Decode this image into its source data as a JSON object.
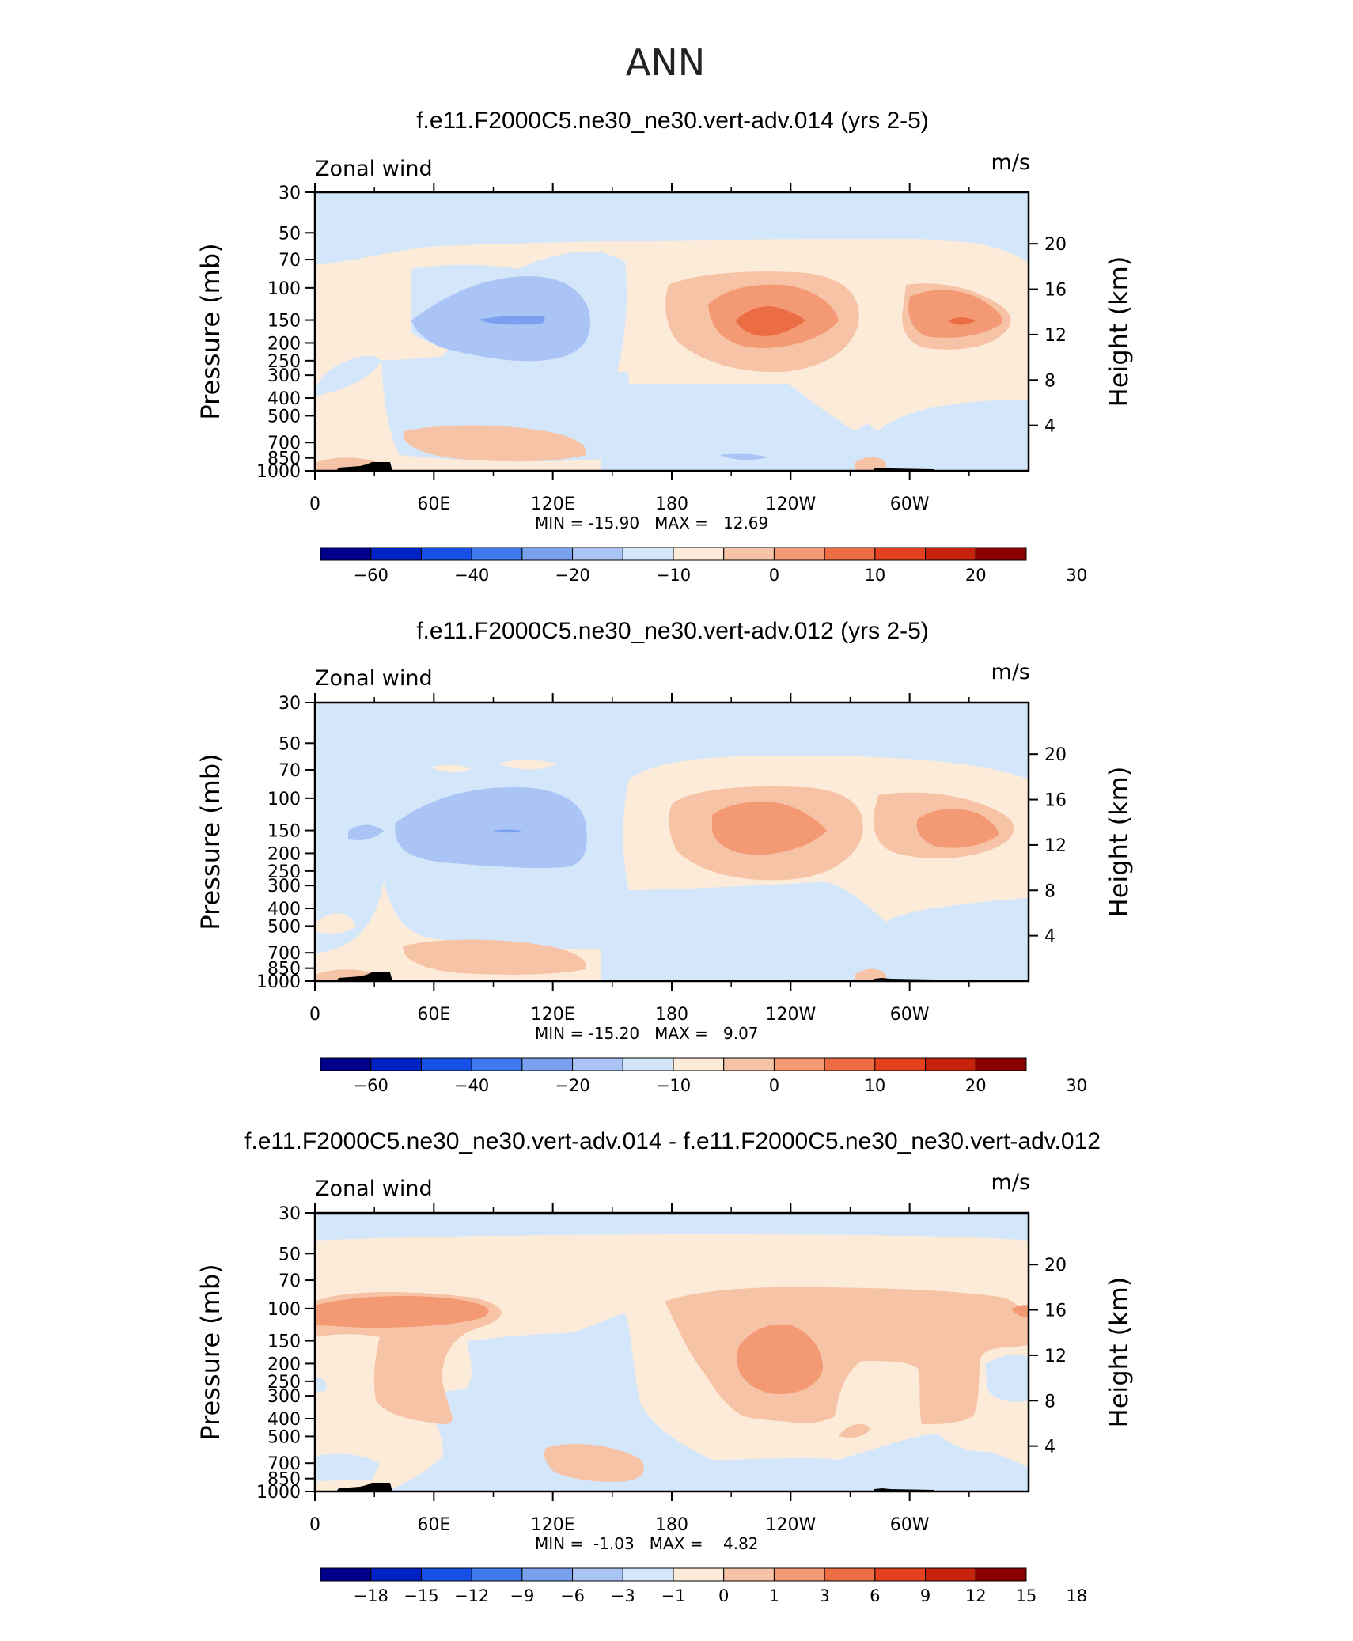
{
  "figure_title": "ANN",
  "palettes": {
    "full": [
      "#00008b",
      "#0022c2",
      "#1750e6",
      "#3f79eb",
      "#7aa1ef",
      "#aac5f5",
      "#d3e6fa",
      "#fdebd9",
      "#f7c3a6",
      "#f39a74",
      "#ec6d44",
      "#e3411f",
      "#c6230d",
      "#8a0000"
    ],
    "diff": [
      "#00008b",
      "#0022c2",
      "#1750e6",
      "#3f79eb",
      "#7aa1ef",
      "#aac5f5",
      "#d3e6fa",
      "#fdebd9",
      "#f7c3a6",
      "#f39a74",
      "#ec6d44",
      "#e3411f",
      "#c6230d",
      "#8a0000"
    ]
  },
  "chart_data": [
    {
      "type": "contour",
      "title": "f.e11.F2000C5.ne30_ne30.vert-adv.014 (yrs 2-5)",
      "left_string": "Zonal wind",
      "right_string": "m/s",
      "ylabel": "Pressure (mb)",
      "ylabel_right": "Height (km)",
      "xticks": [
        "0",
        "60E",
        "120E",
        "180",
        "120W",
        "60W"
      ],
      "yticks": [
        "30",
        "50",
        "70",
        "100",
        "150",
        "200",
        "250",
        "300",
        "400",
        "500",
        "700",
        "850",
        "1000"
      ],
      "yticks_right": [
        "20",
        "16",
        "12",
        "8",
        "4"
      ],
      "min_label": "MIN =",
      "min_value": "-15.90",
      "max_label": "MAX =",
      "max_value": "12.69",
      "min": -15.9,
      "max": 12.69,
      "colorbar_labels": [
        "-60",
        "-40",
        "-20",
        "-10",
        "0",
        "10",
        "20",
        "30"
      ],
      "colorbar_label_bins": [
        1,
        3,
        5,
        7,
        9,
        11,
        13,
        15
      ]
    },
    {
      "type": "contour",
      "title": "f.e11.F2000C5.ne30_ne30.vert-adv.012 (yrs 2-5)",
      "left_string": "Zonal wind",
      "right_string": "m/s",
      "ylabel": "Pressure (mb)",
      "ylabel_right": "Height (km)",
      "xticks": [
        "0",
        "60E",
        "120E",
        "180",
        "120W",
        "60W"
      ],
      "yticks": [
        "30",
        "50",
        "70",
        "100",
        "150",
        "200",
        "250",
        "300",
        "400",
        "500",
        "700",
        "850",
        "1000"
      ],
      "yticks_right": [
        "20",
        "16",
        "12",
        "8",
        "4"
      ],
      "min_label": "MIN =",
      "min_value": "-15.20",
      "max_label": "MAX =",
      "max_value": "9.07",
      "min": -15.2,
      "max": 9.07,
      "colorbar_labels": [
        "-60",
        "-40",
        "-20",
        "-10",
        "0",
        "10",
        "20",
        "30"
      ],
      "colorbar_label_bins": [
        1,
        3,
        5,
        7,
        9,
        11,
        13,
        15
      ]
    },
    {
      "type": "contour",
      "title": "f.e11.F2000C5.ne30_ne30.vert-adv.014 - f.e11.F2000C5.ne30_ne30.vert-adv.012",
      "left_string": "Zonal wind",
      "right_string": "m/s",
      "ylabel": "Pressure (mb)",
      "ylabel_right": "Height (km)",
      "xticks": [
        "0",
        "60E",
        "120E",
        "180",
        "120W",
        "60W"
      ],
      "yticks": [
        "30",
        "50",
        "70",
        "100",
        "150",
        "200",
        "250",
        "300",
        "400",
        "500",
        "700",
        "850",
        "1000"
      ],
      "yticks_right": [
        "20",
        "16",
        "12",
        "8",
        "4"
      ],
      "min_label": "MIN =",
      "min_value": "-1.03",
      "max_label": "MAX =",
      "max_value": "4.82",
      "min": -1.03,
      "max": 4.82,
      "colorbar_labels": [
        "-18",
        "-15",
        "-12",
        "-9",
        "-6",
        "-3",
        "-1",
        "0",
        "1",
        "3",
        "6",
        "9",
        "12",
        "15",
        "18"
      ],
      "colorbar_label_bins": [
        1,
        2,
        3,
        4,
        5,
        6,
        7,
        8,
        9,
        10,
        11,
        12,
        13,
        14,
        15
      ]
    }
  ]
}
